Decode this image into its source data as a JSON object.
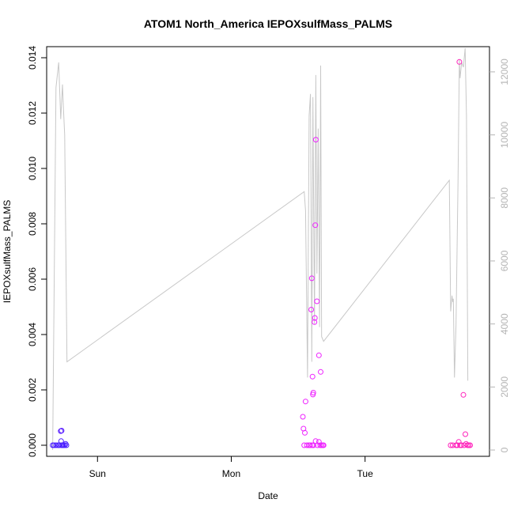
{
  "chart_data": {
    "type": "scatter",
    "title": "ATOM1 North_America IEPOXsulfMass_PALMS",
    "xlabel": "Date",
    "ylabel": "IEPOXsulfMass_PALMS",
    "x_ticks": [
      "Sun",
      "Mon",
      "Tue"
    ],
    "y_ticks": [
      "0.000",
      "0.002",
      "0.004",
      "0.006",
      "0.008",
      "0.010",
      "0.012",
      "0.014"
    ],
    "y2_ticks": [
      "0",
      "2000",
      "4000",
      "6000",
      "8000",
      "10000",
      "12000"
    ],
    "xlim_days": [
      -0.38,
      2.93
    ],
    "ylim": [
      -0.0004,
      0.0144
    ],
    "y2lim": [
      -200,
      12800
    ],
    "grid": false,
    "colors": {
      "line": "#c8c8c8",
      "axis": "#000000",
      "axis2": "#b4b4b4"
    },
    "series": [
      {
        "kind": "points",
        "points": [
          {
            "x": -0.335,
            "y": 0.0,
            "c": "#4b1fff"
          },
          {
            "x": -0.325,
            "y": 0.0,
            "c": "#4b1fff"
          },
          {
            "x": -0.31,
            "y": 0.0,
            "c": "#4b1fff"
          },
          {
            "x": -0.295,
            "y": 0.0,
            "c": "#4b1fff"
          },
          {
            "x": -0.285,
            "y": 0.0,
            "c": "#4b1fff"
          },
          {
            "x": -0.275,
            "y": 0.00051,
            "c": "#5a1fff"
          },
          {
            "x": -0.268,
            "y": 0.00053,
            "c": "#5a1fff"
          },
          {
            "x": -0.272,
            "y": 0.00015,
            "c": "#4b1fff"
          },
          {
            "x": -0.27,
            "y": 0.0,
            "c": "#4b1fff"
          },
          {
            "x": -0.262,
            "y": 0.0,
            "c": "#4b1fff"
          },
          {
            "x": -0.255,
            "y": 0.0,
            "c": "#4b1fff"
          },
          {
            "x": -0.245,
            "y": 0.0,
            "c": "#4b1fff"
          },
          {
            "x": -0.238,
            "y": 5e-05,
            "c": "#4b1fff"
          },
          {
            "x": -0.232,
            "y": 0.0,
            "c": "#4b1fff"
          },
          {
            "x": 1.535,
            "y": 0.00103,
            "c": "#ee22ff"
          },
          {
            "x": 1.54,
            "y": 0.0006,
            "c": "#ee22ff"
          },
          {
            "x": 1.55,
            "y": 0.00045,
            "c": "#ee22ff"
          },
          {
            "x": 1.555,
            "y": 0.00158,
            "c": "#ee22ff"
          },
          {
            "x": 1.545,
            "y": 0.0,
            "c": "#ee22ff"
          },
          {
            "x": 1.565,
            "y": 0.0,
            "c": "#ee22ff"
          },
          {
            "x": 1.58,
            "y": 0.0,
            "c": "#ee22ff"
          },
          {
            "x": 1.59,
            "y": 0.0,
            "c": "#ee22ff"
          },
          {
            "x": 1.598,
            "y": 0.0049,
            "c": "#ee22ff"
          },
          {
            "x": 1.602,
            "y": 0.00603,
            "c": "#ee22ff"
          },
          {
            "x": 1.607,
            "y": 0.00248,
            "c": "#ee22ff"
          },
          {
            "x": 1.61,
            "y": 0.00183,
            "c": "#ee22ff"
          },
          {
            "x": 1.613,
            "y": 0.0019,
            "c": "#ee22ff"
          },
          {
            "x": 1.622,
            "y": 0.00445,
            "c": "#ee22ff"
          },
          {
            "x": 1.625,
            "y": 0.0046,
            "c": "#ee22ff"
          },
          {
            "x": 1.628,
            "y": 0.00795,
            "c": "#ee22ff"
          },
          {
            "x": 1.632,
            "y": 0.01104,
            "c": "#ee22ff"
          },
          {
            "x": 1.64,
            "y": 0.0052,
            "c": "#ee22ff"
          },
          {
            "x": 1.605,
            "y": 0.0,
            "c": "#ee22ff"
          },
          {
            "x": 1.615,
            "y": 0.0,
            "c": "#ee22ff"
          },
          {
            "x": 1.63,
            "y": 0.00015,
            "c": "#ee22ff"
          },
          {
            "x": 1.645,
            "y": 0.0,
            "c": "#ee22ff"
          },
          {
            "x": 1.655,
            "y": 0.00012,
            "c": "#ee22ff"
          },
          {
            "x": 1.665,
            "y": 0.0,
            "c": "#ee22ff"
          },
          {
            "x": 1.675,
            "y": 0.0,
            "c": "#ee22ff"
          },
          {
            "x": 1.685,
            "y": 0.0,
            "c": "#ee22ff"
          },
          {
            "x": 1.69,
            "y": 0.0,
            "c": "#ee22ff"
          },
          {
            "x": 1.655,
            "y": 0.00325,
            "c": "#ee22ff"
          },
          {
            "x": 1.668,
            "y": 0.00265,
            "c": "#ee22ff"
          },
          {
            "x": 2.64,
            "y": 0.0,
            "c": "#ff22bb"
          },
          {
            "x": 2.655,
            "y": 0.0,
            "c": "#ff22bb"
          },
          {
            "x": 2.68,
            "y": 0.0,
            "c": "#ff22bb"
          },
          {
            "x": 2.69,
            "y": 0.0,
            "c": "#ff22bb"
          },
          {
            "x": 2.7,
            "y": 0.00012,
            "c": "#ff22bb"
          },
          {
            "x": 2.705,
            "y": 0.01385,
            "c": "#ff22bb"
          },
          {
            "x": 2.71,
            "y": 0.0,
            "c": "#ff22bb"
          },
          {
            "x": 2.72,
            "y": 0.0,
            "c": "#ff22bb"
          },
          {
            "x": 2.735,
            "y": 0.00182,
            "c": "#ff22bb"
          },
          {
            "x": 2.74,
            "y": 0.0,
            "c": "#ff22bb"
          },
          {
            "x": 2.75,
            "y": 0.0004,
            "c": "#ff22bb"
          },
          {
            "x": 2.755,
            "y": 5e-05,
            "c": "#ff22bb"
          },
          {
            "x": 2.765,
            "y": 0.0,
            "c": "#ff22bb"
          },
          {
            "x": 2.775,
            "y": 0.0,
            "c": "#ff22bb"
          },
          {
            "x": 2.785,
            "y": 0.0,
            "c": "#ff22bb"
          }
        ]
      },
      {
        "kind": "line",
        "axis": "right",
        "x": [
          -0.335,
          -0.31,
          -0.29,
          -0.275,
          -0.262,
          -0.254,
          -0.245,
          -0.228,
          1.545,
          1.555,
          1.57,
          1.582,
          1.592,
          1.602,
          1.61,
          1.622,
          1.632,
          1.64,
          1.65,
          1.66,
          1.668,
          1.675,
          1.69,
          2.63,
          2.64,
          2.65,
          2.655,
          2.66,
          2.668,
          2.68,
          2.695,
          2.705,
          2.71,
          2.722,
          2.735,
          2.748,
          2.758,
          2.768
        ],
        "y": [
          0,
          11500,
          12300,
          10500,
          11600,
          10800,
          10000,
          2800,
          8200,
          7600,
          2300,
          10600,
          11300,
          2800,
          11200,
          4000,
          11900,
          5600,
          10200,
          3900,
          12200,
          3600,
          3450,
          8560,
          4400,
          4900,
          4700,
          4800,
          2300,
          4000,
          8500,
          12400,
          11800,
          12300,
          12150,
          12750,
          10600,
          2200
        ]
      }
    ]
  }
}
